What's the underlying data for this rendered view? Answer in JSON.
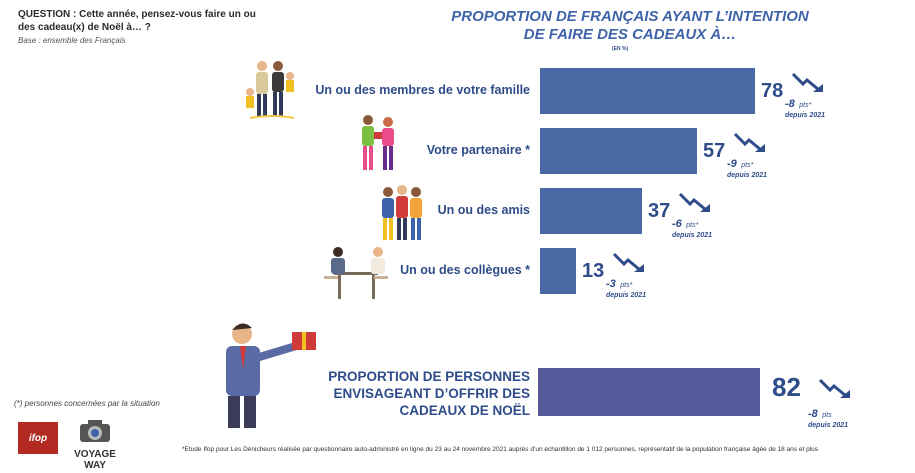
{
  "question": {
    "text": "QUESTION : Cette année, pensez-vous faire un ou des cadeau(x) de Noël à… ?",
    "base": "Base : ensemble des Français"
  },
  "header": {
    "title_line1": "PROPORTION DE FRANÇAIS AYANT L’INTENTION",
    "title_line2": "DE FAIRE DES CADEAUX À…",
    "unit": "(EN %)"
  },
  "chart_data": {
    "type": "bar",
    "orientation": "horizontal",
    "categories": [
      "Un ou des membres de votre famille",
      "Votre partenaire *",
      "Un ou des amis",
      "Un ou des collègues *"
    ],
    "values": [
      78,
      57,
      37,
      13
    ],
    "changes": [
      "-8",
      "-9",
      "-6",
      "-3"
    ],
    "change_unit": "pts",
    "change_asterisk": "*",
    "change_since": "depuis 2021",
    "xlim": [
      0,
      100
    ],
    "grid": false,
    "bar_color": "#4a6aa5"
  },
  "total": {
    "label_line1": "PROPORTION DE PERSONNES",
    "label_line2": "ENVISAGEANT D’OFFRIR DES",
    "label_line3": "CADEAUX DE NOËL",
    "value": 82,
    "change": "-8",
    "change_unit": "pts",
    "since": "depuis 2021",
    "bar_color": "#555a9a"
  },
  "footer": {
    "note": "(*) personnes concernées par la situation",
    "source": "*Etude Ifop pour Les Dénicheurs réalisée par questionnaire auto-administré en ligne du 23 au 24 novembre 2021 auprès d’un échantillon de 1 012 personnes, représentatif de la population française âgée de 18 ans et plus"
  },
  "logos": {
    "ifop": "ifop",
    "voyage_way": "VOYAGE WAY"
  },
  "colors": {
    "text_blue": "#2f4c8a",
    "title_blue": "#3f63a8",
    "ifop_red": "#b22a22"
  }
}
